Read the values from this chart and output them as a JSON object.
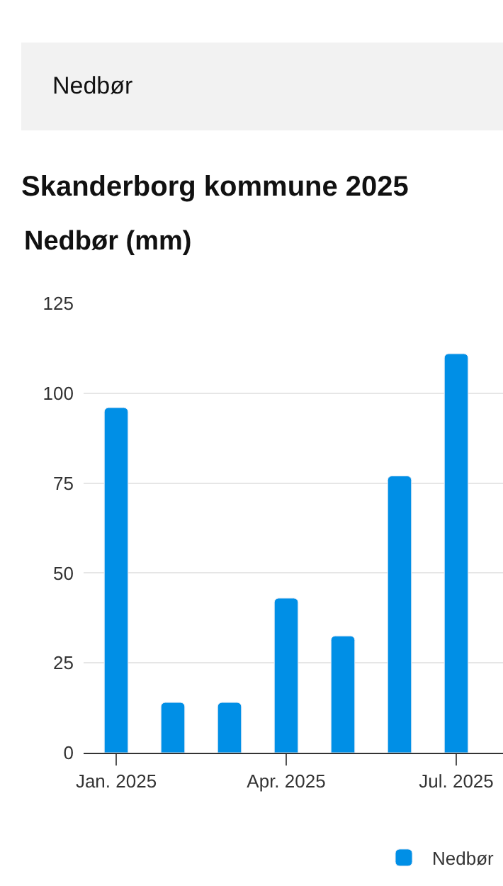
{
  "chart_data": {
    "type": "bar",
    "title": "Skanderborg kommune 2025",
    "subtitle": "Nedbør (mm)",
    "annotations": [
      "Nedbør"
    ],
    "categories": [
      "Jan. 2025",
      null,
      null,
      "Apr. 2025",
      null,
      null,
      "Jul. 2025"
    ],
    "series": [
      {
        "name": "Nedbør",
        "color": "#008fe6",
        "values": [
          96,
          14,
          14,
          43,
          32.5,
          77,
          111
        ]
      }
    ],
    "ylim": [
      0,
      125
    ],
    "yticks": [
      0,
      25,
      50,
      75,
      100,
      125
    ],
    "grid": "y",
    "legend": "bottom right"
  }
}
